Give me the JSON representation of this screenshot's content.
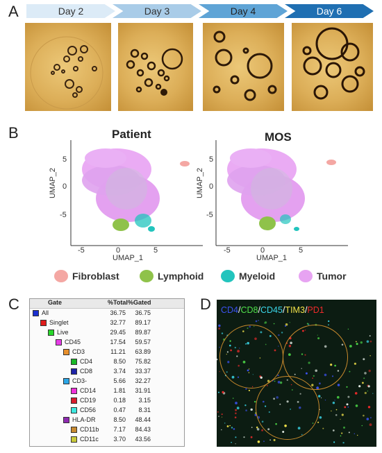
{
  "panels": {
    "a": "A",
    "b": "B",
    "c": "C",
    "d": "D"
  },
  "panel_a": {
    "days": [
      "Day 2",
      "Day 3",
      "Day 4",
      "Day 6"
    ],
    "arrow_colors": [
      "#dcebf7",
      "#a9cce8",
      "#5fa4d6",
      "#1f6fb2"
    ],
    "arrow_text_colors": [
      "#333333",
      "#333333",
      "#222222",
      "#ffffff"
    ]
  },
  "panel_b": {
    "plots": [
      {
        "title": "Patient",
        "xlabel": "UMAP_1",
        "ylabel": "UMAP_2",
        "xticks": [
          "-5",
          "0",
          "5"
        ],
        "yticks": [
          "5",
          "0",
          "-5"
        ]
      },
      {
        "title": "MOS",
        "xlabel": "UMAP_1",
        "ylabel": "UMAP_2",
        "xticks": [
          "-5",
          "0",
          "5"
        ],
        "yticks": [
          "5",
          "0",
          "-5"
        ]
      }
    ],
    "legend": [
      {
        "label": "Fibroblast",
        "color": "#f4a7a3"
      },
      {
        "label": "Lymphoid",
        "color": "#8fc24a"
      },
      {
        "label": "Myeloid",
        "color": "#22c4bd"
      },
      {
        "label": "Tumor",
        "color": "#e7a3f2"
      }
    ]
  },
  "panel_c": {
    "headers": {
      "gate": "Gate",
      "total": "%Total",
      "gated": "%Gated"
    },
    "rows": [
      {
        "name": "All",
        "total": "36.75",
        "gated": "36.75",
        "color": "#1a2fd0",
        "level": 0
      },
      {
        "name": "Singlet",
        "total": "32.77",
        "gated": "89.17",
        "color": "#e01b1b",
        "level": 1
      },
      {
        "name": "Live",
        "total": "29.45",
        "gated": "89.87",
        "color": "#28d82a",
        "level": 2
      },
      {
        "name": "CD45",
        "total": "17.54",
        "gated": "59.57",
        "color": "#e63ce6",
        "level": 3
      },
      {
        "name": "CD3",
        "total": "11.21",
        "gated": "63.89",
        "color": "#e8902c",
        "level": 4
      },
      {
        "name": "CD4",
        "total": "8.50",
        "gated": "75.82",
        "color": "#19b826",
        "level": 5
      },
      {
        "name": "CD8",
        "total": "3.74",
        "gated": "33.37",
        "color": "#1e24a8",
        "level": 5
      },
      {
        "name": "CD3-",
        "total": "5.66",
        "gated": "32.27",
        "color": "#2ba6e6",
        "level": 4
      },
      {
        "name": "CD14",
        "total": "1.81",
        "gated": "31.91",
        "color": "#ee31d8",
        "level": 5
      },
      {
        "name": "CD19",
        "total": "0.18",
        "gated": "3.15",
        "color": "#d81c2d",
        "level": 5
      },
      {
        "name": "CD56",
        "total": "0.47",
        "gated": "8.31",
        "color": "#3de8e0",
        "level": 5
      },
      {
        "name": "HLA-DR",
        "total": "8.50",
        "gated": "48.44",
        "color": "#8e2ab0",
        "level": 4
      },
      {
        "name": "CD11b",
        "total": "7.17",
        "gated": "84.43",
        "color": "#c88a30",
        "level": 5
      },
      {
        "name": "CD11c",
        "total": "3.70",
        "gated": "43.56",
        "color": "#c9c93a",
        "level": 5
      }
    ]
  },
  "panel_d": {
    "markers": [
      {
        "text": "CD4",
        "color": "#3b52f0"
      },
      {
        "text": "/",
        "color": "#ffffff"
      },
      {
        "text": "CD8",
        "color": "#4fe04a"
      },
      {
        "text": "/",
        "color": "#ffffff"
      },
      {
        "text": "CD45",
        "color": "#3ad6e8"
      },
      {
        "text": "/",
        "color": "#ffffff"
      },
      {
        "text": "TIM3",
        "color": "#f2e24a"
      },
      {
        "text": "/",
        "color": "#ffffff"
      },
      {
        "text": "PD1",
        "color": "#ee2a2a"
      }
    ]
  }
}
